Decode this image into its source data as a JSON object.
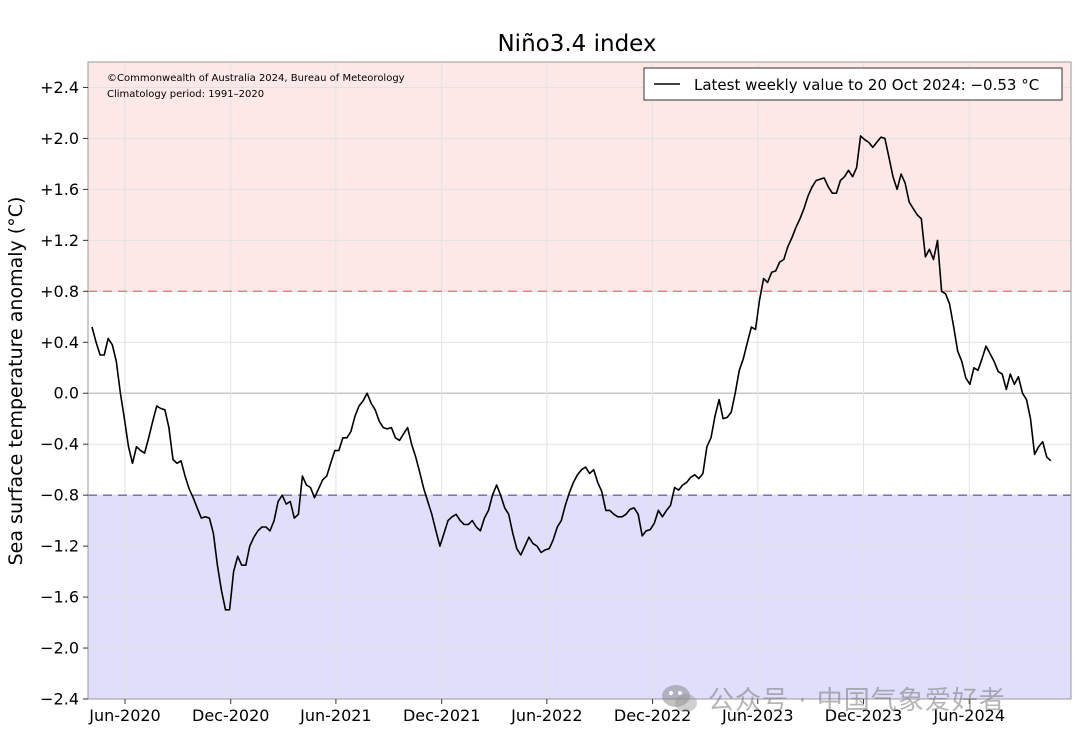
{
  "chart_data": {
    "type": "line",
    "title": "Niño3.4 index",
    "ylabel": "Sea surface temperature anomaly (°C)",
    "xlabel": "",
    "ylim": [
      -2.4,
      2.6
    ],
    "yticks": [
      -2.4,
      -2.0,
      -1.6,
      -1.2,
      -0.8,
      -0.4,
      0.0,
      0.4,
      0.8,
      1.2,
      1.6,
      2.0,
      2.4
    ],
    "ytick_labels": [
      "−2.4",
      "−2.0",
      "−1.6",
      "−1.2",
      "−0.8",
      "−0.4",
      "0.0",
      "+0.4",
      "+0.8",
      "+1.2",
      "+1.6",
      "+2.0",
      "+2.4"
    ],
    "xlim": [
      "2020-03-29",
      "2024-11-24"
    ],
    "xticks": [
      "2020-06-01",
      "2020-12-01",
      "2021-06-01",
      "2021-12-01",
      "2022-06-01",
      "2022-12-01",
      "2023-06-01",
      "2023-12-01",
      "2024-06-01"
    ],
    "xtick_labels": [
      "Jun-2020",
      "Dec-2020",
      "Jun-2021",
      "Dec-2021",
      "Jun-2022",
      "Dec-2022",
      "Jun-2023",
      "Dec-2023",
      "Jun-2024"
    ],
    "grid": true,
    "legend_position": "top-right",
    "el_nino_threshold": 0.8,
    "la_nina_threshold": -0.8,
    "colors": {
      "warm_region": "#fde8e8",
      "cool_region": "#dfdffb",
      "warm_threshold": "#e87a7a",
      "cool_threshold": "#6a6aa3",
      "line": "#000000",
      "zero_line": "#c8c8c8",
      "grid": "#e2e2e2"
    },
    "annotations": [
      "©Commonwealth of Australia 2024, Bureau of Meteorology",
      "Climatology period: 1991–2020"
    ],
    "series": [
      {
        "name": "Latest weekly value to 20 Oct 2024: −0.53 °C",
        "points": [
          [
            "2020-04-05",
            0.52
          ],
          [
            "2020-04-12",
            0.4
          ],
          [
            "2020-04-19",
            0.3
          ],
          [
            "2020-04-26",
            0.3
          ],
          [
            "2020-05-03",
            0.43
          ],
          [
            "2020-05-10",
            0.38
          ],
          [
            "2020-05-17",
            0.25
          ],
          [
            "2020-05-24",
            0.0
          ],
          [
            "2020-05-31",
            -0.2
          ],
          [
            "2020-06-07",
            -0.42
          ],
          [
            "2020-06-14",
            -0.55
          ],
          [
            "2020-06-21",
            -0.42
          ],
          [
            "2020-06-28",
            -0.45
          ],
          [
            "2020-07-05",
            -0.47
          ],
          [
            "2020-07-12",
            -0.35
          ],
          [
            "2020-07-19",
            -0.22
          ],
          [
            "2020-07-26",
            -0.1
          ],
          [
            "2020-08-02",
            -0.12
          ],
          [
            "2020-08-09",
            -0.13
          ],
          [
            "2020-08-16",
            -0.27
          ],
          [
            "2020-08-23",
            -0.52
          ],
          [
            "2020-08-30",
            -0.55
          ],
          [
            "2020-09-06",
            -0.53
          ],
          [
            "2020-09-13",
            -0.65
          ],
          [
            "2020-09-20",
            -0.75
          ],
          [
            "2020-09-27",
            -0.82
          ],
          [
            "2020-10-04",
            -0.9
          ],
          [
            "2020-10-11",
            -0.98
          ],
          [
            "2020-10-18",
            -0.97
          ],
          [
            "2020-10-25",
            -0.98
          ],
          [
            "2020-11-01",
            -1.1
          ],
          [
            "2020-11-08",
            -1.35
          ],
          [
            "2020-11-15",
            -1.55
          ],
          [
            "2020-11-22",
            -1.7
          ],
          [
            "2020-11-29",
            -1.7
          ],
          [
            "2020-12-06",
            -1.4
          ],
          [
            "2020-12-13",
            -1.28
          ],
          [
            "2020-12-20",
            -1.35
          ],
          [
            "2020-12-27",
            -1.35
          ],
          [
            "2021-01-03",
            -1.2
          ],
          [
            "2021-01-10",
            -1.13
          ],
          [
            "2021-01-17",
            -1.08
          ],
          [
            "2021-01-24",
            -1.05
          ],
          [
            "2021-01-31",
            -1.05
          ],
          [
            "2021-02-07",
            -1.08
          ],
          [
            "2021-02-14",
            -1.0
          ],
          [
            "2021-02-21",
            -0.85
          ],
          [
            "2021-02-28",
            -0.8
          ],
          [
            "2021-03-07",
            -0.87
          ],
          [
            "2021-03-14",
            -0.85
          ],
          [
            "2021-03-21",
            -0.98
          ],
          [
            "2021-03-28",
            -0.95
          ],
          [
            "2021-04-04",
            -0.65
          ],
          [
            "2021-04-11",
            -0.72
          ],
          [
            "2021-04-18",
            -0.74
          ],
          [
            "2021-04-25",
            -0.82
          ],
          [
            "2021-05-02",
            -0.75
          ],
          [
            "2021-05-09",
            -0.68
          ],
          [
            "2021-05-16",
            -0.65
          ],
          [
            "2021-05-23",
            -0.55
          ],
          [
            "2021-05-30",
            -0.45
          ],
          [
            "2021-06-06",
            -0.45
          ],
          [
            "2021-06-13",
            -0.35
          ],
          [
            "2021-06-20",
            -0.35
          ],
          [
            "2021-06-27",
            -0.3
          ],
          [
            "2021-07-04",
            -0.18
          ],
          [
            "2021-07-11",
            -0.1
          ],
          [
            "2021-07-18",
            -0.06
          ],
          [
            "2021-07-25",
            0.0
          ],
          [
            "2021-08-01",
            -0.08
          ],
          [
            "2021-08-08",
            -0.13
          ],
          [
            "2021-08-15",
            -0.22
          ],
          [
            "2021-08-22",
            -0.27
          ],
          [
            "2021-08-29",
            -0.28
          ],
          [
            "2021-09-05",
            -0.27
          ],
          [
            "2021-09-12",
            -0.35
          ],
          [
            "2021-09-19",
            -0.37
          ],
          [
            "2021-09-26",
            -0.32
          ],
          [
            "2021-10-03",
            -0.27
          ],
          [
            "2021-10-10",
            -0.4
          ],
          [
            "2021-10-17",
            -0.5
          ],
          [
            "2021-10-24",
            -0.62
          ],
          [
            "2021-10-31",
            -0.75
          ],
          [
            "2021-11-07",
            -0.85
          ],
          [
            "2021-11-14",
            -0.95
          ],
          [
            "2021-11-21",
            -1.08
          ],
          [
            "2021-11-28",
            -1.2
          ],
          [
            "2021-12-05",
            -1.1
          ],
          [
            "2021-12-12",
            -1.0
          ],
          [
            "2021-12-19",
            -0.97
          ],
          [
            "2021-12-26",
            -0.95
          ],
          [
            "2022-01-02",
            -1.0
          ],
          [
            "2022-01-09",
            -1.03
          ],
          [
            "2022-01-16",
            -1.03
          ],
          [
            "2022-01-23",
            -1.0
          ],
          [
            "2022-01-30",
            -1.05
          ],
          [
            "2022-02-06",
            -1.08
          ],
          [
            "2022-02-13",
            -0.98
          ],
          [
            "2022-02-20",
            -0.92
          ],
          [
            "2022-02-27",
            -0.8
          ],
          [
            "2022-03-06",
            -0.72
          ],
          [
            "2022-03-13",
            -0.8
          ],
          [
            "2022-03-20",
            -0.9
          ],
          [
            "2022-03-27",
            -0.95
          ],
          [
            "2022-04-03",
            -1.1
          ],
          [
            "2022-04-10",
            -1.22
          ],
          [
            "2022-04-17",
            -1.27
          ],
          [
            "2022-04-24",
            -1.2
          ],
          [
            "2022-05-01",
            -1.13
          ],
          [
            "2022-05-08",
            -1.18
          ],
          [
            "2022-05-15",
            -1.2
          ],
          [
            "2022-05-22",
            -1.25
          ],
          [
            "2022-05-29",
            -1.23
          ],
          [
            "2022-06-05",
            -1.22
          ],
          [
            "2022-06-12",
            -1.15
          ],
          [
            "2022-06-19",
            -1.05
          ],
          [
            "2022-06-26",
            -1.0
          ],
          [
            "2022-07-03",
            -0.88
          ],
          [
            "2022-07-10",
            -0.78
          ],
          [
            "2022-07-17",
            -0.7
          ],
          [
            "2022-07-24",
            -0.64
          ],
          [
            "2022-07-31",
            -0.6
          ],
          [
            "2022-08-07",
            -0.58
          ],
          [
            "2022-08-14",
            -0.63
          ],
          [
            "2022-08-21",
            -0.6
          ],
          [
            "2022-08-28",
            -0.7
          ],
          [
            "2022-09-04",
            -0.77
          ],
          [
            "2022-09-11",
            -0.92
          ],
          [
            "2022-09-18",
            -0.92
          ],
          [
            "2022-09-25",
            -0.95
          ],
          [
            "2022-10-02",
            -0.97
          ],
          [
            "2022-10-09",
            -0.97
          ],
          [
            "2022-10-16",
            -0.95
          ],
          [
            "2022-10-23",
            -0.91
          ],
          [
            "2022-10-30",
            -0.9
          ],
          [
            "2022-11-06",
            -0.95
          ],
          [
            "2022-11-13",
            -1.12
          ],
          [
            "2022-11-20",
            -1.08
          ],
          [
            "2022-11-27",
            -1.07
          ],
          [
            "2022-12-04",
            -1.02
          ],
          [
            "2022-12-11",
            -0.92
          ],
          [
            "2022-12-18",
            -0.97
          ],
          [
            "2022-12-25",
            -0.92
          ],
          [
            "2023-01-01",
            -0.88
          ],
          [
            "2023-01-08",
            -0.74
          ],
          [
            "2023-01-15",
            -0.76
          ],
          [
            "2023-01-22",
            -0.72
          ],
          [
            "2023-01-29",
            -0.7
          ],
          [
            "2023-02-05",
            -0.66
          ],
          [
            "2023-02-12",
            -0.64
          ],
          [
            "2023-02-19",
            -0.67
          ],
          [
            "2023-02-26",
            -0.63
          ],
          [
            "2023-03-05",
            -0.42
          ],
          [
            "2023-03-12",
            -0.35
          ],
          [
            "2023-03-19",
            -0.18
          ],
          [
            "2023-03-26",
            -0.05
          ],
          [
            "2023-04-02",
            -0.2
          ],
          [
            "2023-04-09",
            -0.19
          ],
          [
            "2023-04-16",
            -0.15
          ],
          [
            "2023-04-23",
            0.0
          ],
          [
            "2023-04-30",
            0.18
          ],
          [
            "2023-05-07",
            0.27
          ],
          [
            "2023-05-14",
            0.4
          ],
          [
            "2023-05-21",
            0.52
          ],
          [
            "2023-05-28",
            0.5
          ],
          [
            "2023-06-04",
            0.73
          ],
          [
            "2023-06-11",
            0.9
          ],
          [
            "2023-06-18",
            0.87
          ],
          [
            "2023-06-25",
            0.95
          ],
          [
            "2023-07-02",
            0.96
          ],
          [
            "2023-07-09",
            1.03
          ],
          [
            "2023-07-16",
            1.05
          ],
          [
            "2023-07-23",
            1.15
          ],
          [
            "2023-07-30",
            1.22
          ],
          [
            "2023-08-06",
            1.3
          ],
          [
            "2023-08-13",
            1.37
          ],
          [
            "2023-08-20",
            1.45
          ],
          [
            "2023-08-27",
            1.55
          ],
          [
            "2023-09-03",
            1.62
          ],
          [
            "2023-09-10",
            1.67
          ],
          [
            "2023-09-17",
            1.68
          ],
          [
            "2023-09-24",
            1.69
          ],
          [
            "2023-10-01",
            1.62
          ],
          [
            "2023-10-08",
            1.57
          ],
          [
            "2023-10-15",
            1.57
          ],
          [
            "2023-10-22",
            1.67
          ],
          [
            "2023-10-29",
            1.7
          ],
          [
            "2023-11-05",
            1.75
          ],
          [
            "2023-11-12",
            1.7
          ],
          [
            "2023-11-19",
            1.77
          ],
          [
            "2023-11-26",
            2.02
          ],
          [
            "2023-12-03",
            1.99
          ],
          [
            "2023-12-10",
            1.97
          ],
          [
            "2023-12-17",
            1.93
          ],
          [
            "2023-12-24",
            1.97
          ],
          [
            "2023-12-31",
            2.01
          ],
          [
            "2024-01-07",
            2.0
          ],
          [
            "2024-01-14",
            1.85
          ],
          [
            "2024-01-21",
            1.7
          ],
          [
            "2024-01-28",
            1.6
          ],
          [
            "2024-02-04",
            1.72
          ],
          [
            "2024-02-11",
            1.65
          ],
          [
            "2024-02-18",
            1.5
          ],
          [
            "2024-02-25",
            1.45
          ],
          [
            "2024-03-03",
            1.4
          ],
          [
            "2024-03-10",
            1.37
          ],
          [
            "2024-03-17",
            1.07
          ],
          [
            "2024-03-24",
            1.13
          ],
          [
            "2024-03-31",
            1.05
          ],
          [
            "2024-04-07",
            1.2
          ],
          [
            "2024-04-14",
            0.8
          ],
          [
            "2024-04-21",
            0.78
          ],
          [
            "2024-04-28",
            0.7
          ],
          [
            "2024-05-05",
            0.52
          ],
          [
            "2024-05-12",
            0.33
          ],
          [
            "2024-05-19",
            0.25
          ],
          [
            "2024-05-26",
            0.12
          ],
          [
            "2024-06-02",
            0.07
          ],
          [
            "2024-06-09",
            0.2
          ],
          [
            "2024-06-16",
            0.18
          ],
          [
            "2024-06-23",
            0.27
          ],
          [
            "2024-06-30",
            0.37
          ],
          [
            "2024-07-07",
            0.31
          ],
          [
            "2024-07-14",
            0.25
          ],
          [
            "2024-07-21",
            0.17
          ],
          [
            "2024-07-28",
            0.15
          ],
          [
            "2024-08-04",
            0.03
          ],
          [
            "2024-08-11",
            0.15
          ],
          [
            "2024-08-18",
            0.07
          ],
          [
            "2024-08-25",
            0.13
          ],
          [
            "2024-09-01",
            0.0
          ],
          [
            "2024-09-08",
            -0.05
          ],
          [
            "2024-09-15",
            -0.2
          ],
          [
            "2024-09-22",
            -0.48
          ],
          [
            "2024-09-29",
            -0.42
          ],
          [
            "2024-10-06",
            -0.38
          ],
          [
            "2024-10-13",
            -0.5
          ],
          [
            "2024-10-20",
            -0.53
          ]
        ]
      }
    ]
  },
  "watermark": {
    "text": "公众号 · 中国气象爱好者",
    "icon": "wechat-icon"
  }
}
